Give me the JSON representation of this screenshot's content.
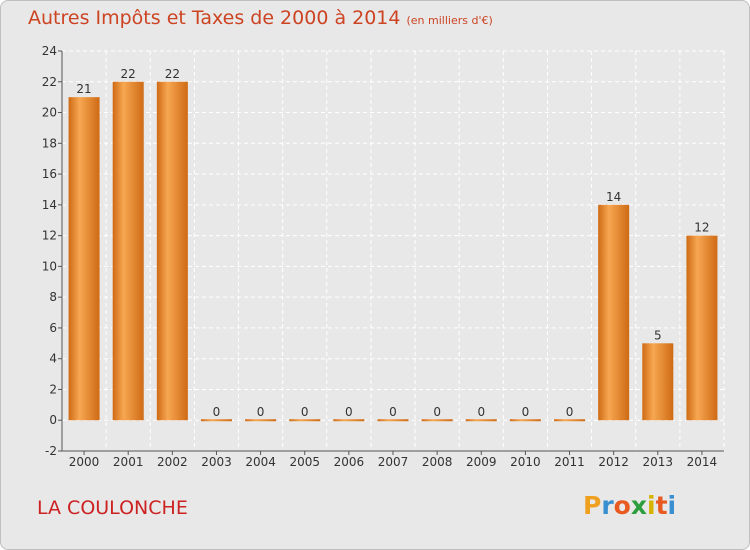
{
  "header": {
    "title": "Autres Impôts et Taxes de 2000 à 2014",
    "subtitle": "(en milliers d'€)"
  },
  "footer": {
    "commune": "LA COULONCHE",
    "brand_letters": [
      "P",
      "r",
      "o",
      "x",
      "i",
      "t",
      "i"
    ],
    "brand_colors": [
      "#f0a020",
      "#3a8fd0",
      "#e85a20",
      "#2e9d3e",
      "#d6b400",
      "#e85a20",
      "#3a8fd0"
    ]
  },
  "colors": {
    "bar_light": "#f7a752",
    "bar_dark": "#cf6a14",
    "title": "#cc4422",
    "commune": "#cc2222",
    "plot_bg": "#e8e8e8",
    "grid": "#ffffff"
  },
  "chart_data": {
    "type": "bar",
    "title": "Autres Impôts et Taxes de 2000 à 2014",
    "subtitle": "(en milliers d'€)",
    "categories": [
      "2000",
      "2001",
      "2002",
      "2003",
      "2004",
      "2005",
      "2006",
      "2007",
      "2008",
      "2009",
      "2010",
      "2011",
      "2012",
      "2013",
      "2014"
    ],
    "values": [
      21,
      22,
      22,
      0,
      0,
      0,
      0,
      0,
      0,
      0,
      0,
      0,
      14,
      5,
      12
    ],
    "ylim": [
      -2,
      24
    ],
    "yticks": [
      -2,
      0,
      2,
      4,
      6,
      8,
      10,
      12,
      14,
      16,
      18,
      20,
      22,
      24
    ],
    "grid": true,
    "xlabel": "",
    "ylabel": ""
  }
}
